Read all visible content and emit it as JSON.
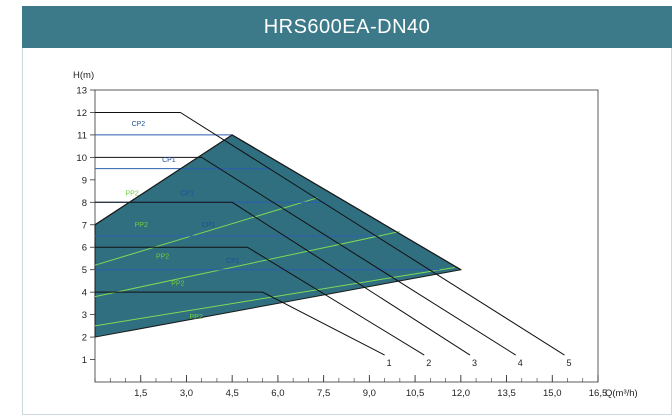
{
  "header": {
    "title": "HRS600EA-DN40"
  },
  "colors": {
    "header_bg": "#3c7a8a",
    "region_fill": "#2f6f7f",
    "region_edge": "#1a1a1a",
    "pp_line": "#7ed957",
    "cp_line": "#2c5fb0",
    "speed_line": "#111111"
  },
  "chart_data": {
    "type": "line",
    "title": "",
    "xlabel": "Q(m³/h)",
    "ylabel": "H(m)",
    "xlim": [
      0,
      16.5
    ],
    "ylim": [
      0,
      13
    ],
    "x_ticks": [
      "1,5",
      "3,0",
      "4,5",
      "6,0",
      "7,5",
      "9,0",
      "10,5",
      "12,0",
      "13,5",
      "15,0",
      "16,5"
    ],
    "x_tick_values": [
      1.5,
      3.0,
      4.5,
      6.0,
      7.5,
      9.0,
      10.5,
      12.0,
      13.5,
      15.0,
      16.5
    ],
    "y_ticks": [
      "1",
      "2",
      "3",
      "4",
      "5",
      "6",
      "7",
      "8",
      "9",
      "10",
      "11",
      "12",
      "13"
    ],
    "y_tick_values": [
      1,
      2,
      3,
      4,
      5,
      6,
      7,
      8,
      9,
      10,
      11,
      12,
      13
    ],
    "operating_region": {
      "points": [
        [
          0,
          2
        ],
        [
          0,
          7
        ],
        [
          4.5,
          11
        ],
        [
          12,
          5
        ],
        [
          0,
          2
        ]
      ]
    },
    "speed_curves": [
      {
        "label": "1",
        "points": [
          [
            0,
            4
          ],
          [
            5.5,
            4
          ],
          [
            9.5,
            1.2
          ]
        ]
      },
      {
        "label": "2",
        "points": [
          [
            0,
            6
          ],
          [
            5,
            6
          ],
          [
            10.8,
            1.2
          ]
        ]
      },
      {
        "label": "3",
        "points": [
          [
            0,
            8
          ],
          [
            4.5,
            8
          ],
          [
            12.3,
            1.2
          ]
        ]
      },
      {
        "label": "4",
        "points": [
          [
            0,
            10
          ],
          [
            3.5,
            10
          ],
          [
            13.8,
            1.2
          ]
        ]
      },
      {
        "label": "5",
        "points": [
          [
            0,
            12
          ],
          [
            2.8,
            12
          ],
          [
            15.4,
            1.2
          ]
        ]
      }
    ],
    "pp_lines": [
      {
        "label": "PP2",
        "points": [
          [
            0,
            5.2
          ],
          [
            7.3,
            8.2
          ]
        ]
      },
      {
        "label": "PP2",
        "points": [
          [
            0,
            3.8
          ],
          [
            10,
            6.7
          ]
        ]
      },
      {
        "label": "PP2",
        "points": [
          [
            0,
            2.5
          ],
          [
            11.8,
            5.1
          ]
        ]
      }
    ],
    "cp_lines": [
      {
        "label": "CP2",
        "points": [
          [
            0,
            11
          ],
          [
            4.5,
            11
          ]
        ]
      },
      {
        "label": "CP1",
        "points": [
          [
            0,
            9.5
          ],
          [
            5.8,
            9.5
          ]
        ]
      },
      {
        "label": "CP1",
        "points": [
          [
            0,
            8
          ],
          [
            7.6,
            8
          ]
        ]
      },
      {
        "label": "CP1",
        "points": [
          [
            0,
            6.5
          ],
          [
            9.3,
            6.5
          ]
        ]
      },
      {
        "label": "CP1",
        "points": [
          [
            0,
            5
          ],
          [
            11.3,
            5
          ]
        ]
      }
    ],
    "inline_labels": [
      {
        "text": "CP2",
        "kind": "cp",
        "x": 1.2,
        "y": 11.4
      },
      {
        "text": "CP1",
        "kind": "cp",
        "x": 2.2,
        "y": 9.8
      },
      {
        "text": "PP2",
        "kind": "pp",
        "x": 1.0,
        "y": 8.3
      },
      {
        "text": "CP1",
        "kind": "cp",
        "x": 2.8,
        "y": 8.3
      },
      {
        "text": "PP2",
        "kind": "pp",
        "x": 1.3,
        "y": 6.9
      },
      {
        "text": "CP1",
        "kind": "cp",
        "x": 3.5,
        "y": 6.9
      },
      {
        "text": "PP2",
        "kind": "pp",
        "x": 2.0,
        "y": 5.5
      },
      {
        "text": "CP1",
        "kind": "cp",
        "x": 4.3,
        "y": 5.3
      },
      {
        "text": "PP2",
        "kind": "pp",
        "x": 2.5,
        "y": 4.3
      },
      {
        "text": "PP2",
        "kind": "pp",
        "x": 3.1,
        "y": 2.8
      }
    ],
    "grid": false,
    "legend": "none"
  }
}
